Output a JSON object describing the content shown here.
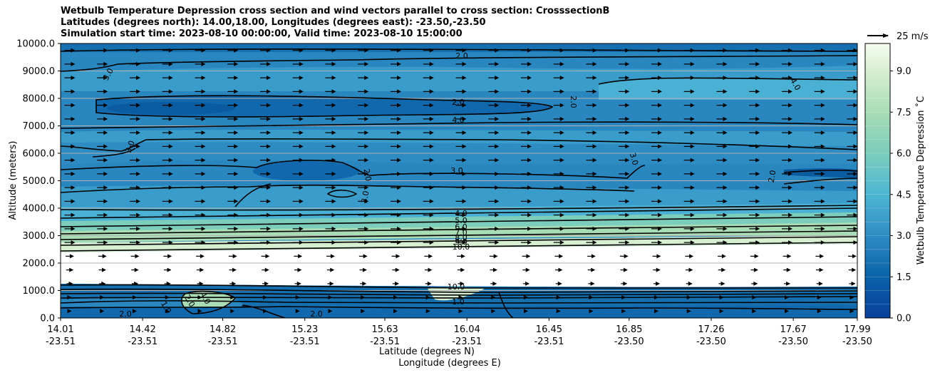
{
  "chart_data": {
    "type": "contourf",
    "title_lines": [
      "Wetbulb Temperature Depression cross section and wind vectors parallel to cross section: CrosssectionB",
      "Latitudes (degrees north): 14.00,18.00, Longitudes (degrees east): -23.50,-23.50",
      "Simulation start time: 2023-08-10 00:00:00, Valid time: 2023-08-10 15:00:00"
    ],
    "ylabel": "Altitude (meters)",
    "xlabel_lat": "Latitude (degrees N)",
    "xlabel_lon": "Longitude (degrees E)",
    "ylim": [
      0,
      10000
    ],
    "xlim": [
      14.01,
      17.99
    ],
    "y_ticks": [
      "0.0",
      "1000.0",
      "2000.0",
      "3000.0",
      "4000.0",
      "5000.0",
      "6000.0",
      "7000.0",
      "8000.0",
      "9000.0",
      "10000.0"
    ],
    "x_ticks": [
      {
        "lat": "14.01",
        "lon": "-23.51"
      },
      {
        "lat": "14.42",
        "lon": "-23.51"
      },
      {
        "lat": "14.82",
        "lon": "-23.51"
      },
      {
        "lat": "15.23",
        "lon": "-23.51"
      },
      {
        "lat": "15.63",
        "lon": "-23.51"
      },
      {
        "lat": "16.04",
        "lon": "-23.51"
      },
      {
        "lat": "16.45",
        "lon": "-23.51"
      },
      {
        "lat": "16.85",
        "lon": "-23.50"
      },
      {
        "lat": "17.26",
        "lon": "-23.50"
      },
      {
        "lat": "17.67",
        "lon": "-23.50"
      },
      {
        "lat": "17.99",
        "lon": "-23.50"
      }
    ],
    "colorbar": {
      "label": "Wetbulb Temperature Depression ˚C",
      "range": [
        0,
        10
      ],
      "ticks": [
        "0.0",
        "1.5",
        "3.0",
        "4.5",
        "6.0",
        "7.5",
        "9.0"
      ],
      "levels": 20
    },
    "wind_key": {
      "label": "25 m/s",
      "speed": 25
    },
    "contour_labels": [
      "2.0",
      "3.0",
      "2.0",
      "2.0",
      "4.0",
      "3.0",
      "3.0",
      "2.0",
      "3.0",
      "3.0",
      "2.0",
      "4.0",
      "4.0",
      "5.0",
      "6.0",
      "7.0",
      "8.0",
      "9.0",
      "10.0",
      "10.0",
      "1.0",
      "2.0",
      "1.0",
      "2.0",
      "4.0",
      "2.0"
    ],
    "grid": "horizontal"
  },
  "palette": {
    "background": "#ffffff",
    "axis": "#000000",
    "grid": "#b0b0b0"
  }
}
